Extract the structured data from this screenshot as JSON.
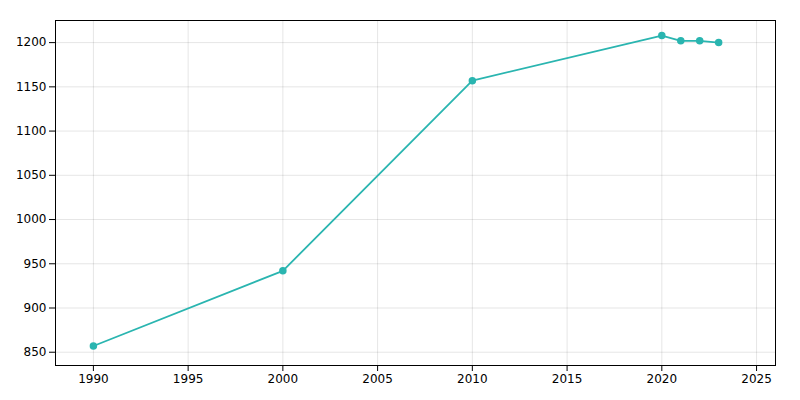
{
  "chart_data": {
    "type": "line",
    "x": [
      1990,
      2000,
      2010,
      2020,
      2021,
      2022,
      2023
    ],
    "values": [
      857,
      942,
      1157,
      1208,
      1202,
      1202,
      1200
    ],
    "color": "#2ab5b0",
    "marker": "circle",
    "xlim": [
      1988,
      2026
    ],
    "ylim": [
      835,
      1225
    ],
    "xticks": [
      1990,
      1995,
      2000,
      2005,
      2010,
      2015,
      2020,
      2025
    ],
    "yticks": [
      850,
      900,
      950,
      1000,
      1050,
      1100,
      1150,
      1200
    ],
    "grid": true
  }
}
